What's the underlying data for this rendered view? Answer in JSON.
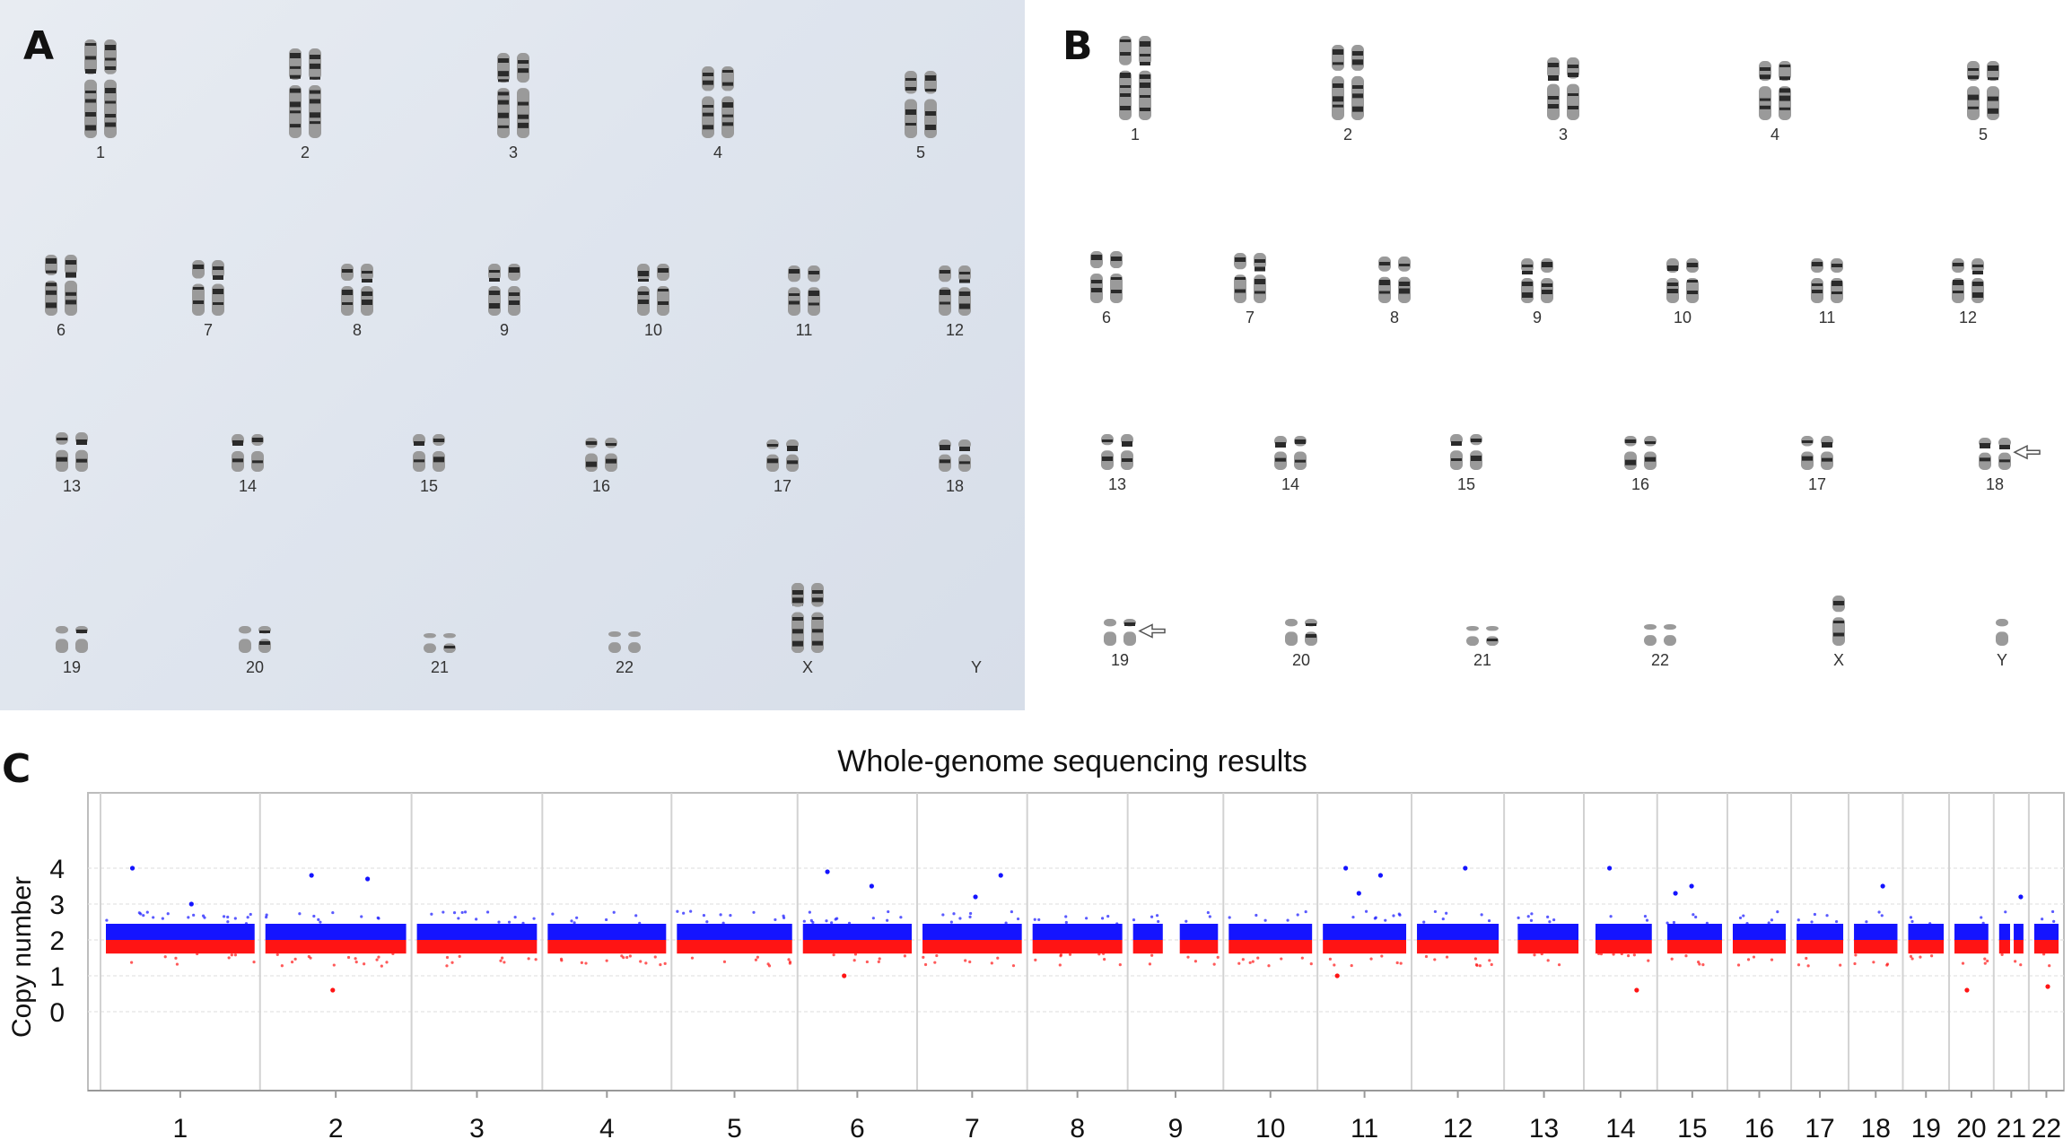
{
  "figure": {
    "panels": {
      "a": {
        "letter": "A",
        "karyotype_labels": [
          "1",
          "2",
          "3",
          "4",
          "5",
          "6",
          "7",
          "8",
          "9",
          "10",
          "11",
          "12",
          "13",
          "14",
          "15",
          "16",
          "17",
          "18",
          "19",
          "20",
          "21",
          "22",
          "X",
          "Y"
        ]
      },
      "b": {
        "letter": "B",
        "karyotype_labels": [
          "1",
          "2",
          "3",
          "4",
          "5",
          "6",
          "7",
          "8",
          "9",
          "10",
          "11",
          "12",
          "13",
          "14",
          "15",
          "16",
          "17",
          "18",
          "19",
          "20",
          "21",
          "22",
          "X",
          "Y"
        ],
        "arrow_marked_chromosomes": [
          "18",
          "19"
        ]
      },
      "c": {
        "letter": "C"
      }
    },
    "colors": {
      "above_baseline": "#1414ff",
      "below_baseline": "#ff1414",
      "karyotype_band": "#2a2a2a"
    }
  },
  "chart_data": {
    "type": "scatter",
    "title": "Whole-genome sequencing results",
    "xlabel": "",
    "ylabel": "Copy number",
    "ylim": [
      -2.2,
      6.1
    ],
    "yticks": [
      "0",
      "1",
      "2",
      "3",
      "4"
    ],
    "ytick_values": [
      0,
      1,
      2,
      3,
      4
    ],
    "grid": true,
    "baseline": 2,
    "categories": [
      "1",
      "2",
      "3",
      "4",
      "5",
      "6",
      "7",
      "8",
      "9",
      "10",
      "11",
      "12",
      "13",
      "14",
      "15",
      "16",
      "17",
      "18",
      "19",
      "20",
      "21",
      "22"
    ],
    "series": [
      {
        "values": [
          2,
          2,
          2,
          2,
          2,
          2,
          2,
          2,
          2,
          2,
          2,
          2,
          2,
          2,
          2,
          2,
          2,
          2,
          2,
          2,
          2,
          2
        ],
        "outliers": [
          {
            "chr": "1",
            "y": 4.0
          },
          {
            "chr": "1",
            "y": 3.0
          },
          {
            "chr": "2",
            "y": 3.8
          },
          {
            "chr": "2",
            "y": 3.7
          },
          {
            "chr": "2",
            "y": 0.6
          },
          {
            "chr": "6",
            "y": 3.9
          },
          {
            "chr": "6",
            "y": 3.5
          },
          {
            "chr": "6",
            "y": 1.0
          },
          {
            "chr": "7",
            "y": 3.8
          },
          {
            "chr": "7",
            "y": 3.2
          },
          {
            "chr": "11",
            "y": 4.0
          },
          {
            "chr": "11",
            "y": 3.8
          },
          {
            "chr": "11",
            "y": 3.3
          },
          {
            "chr": "11",
            "y": 1.0
          },
          {
            "chr": "12",
            "y": 4.0
          },
          {
            "chr": "14",
            "y": 4.0
          },
          {
            "chr": "14",
            "y": 0.6
          },
          {
            "chr": "15",
            "y": 3.5
          },
          {
            "chr": "15",
            "y": 3.3
          },
          {
            "chr": "18",
            "y": 3.5
          },
          {
            "chr": "20",
            "y": 0.6
          },
          {
            "chr": "21",
            "y": 3.2
          },
          {
            "chr": "22",
            "y": 0.7
          }
        ]
      }
    ]
  }
}
